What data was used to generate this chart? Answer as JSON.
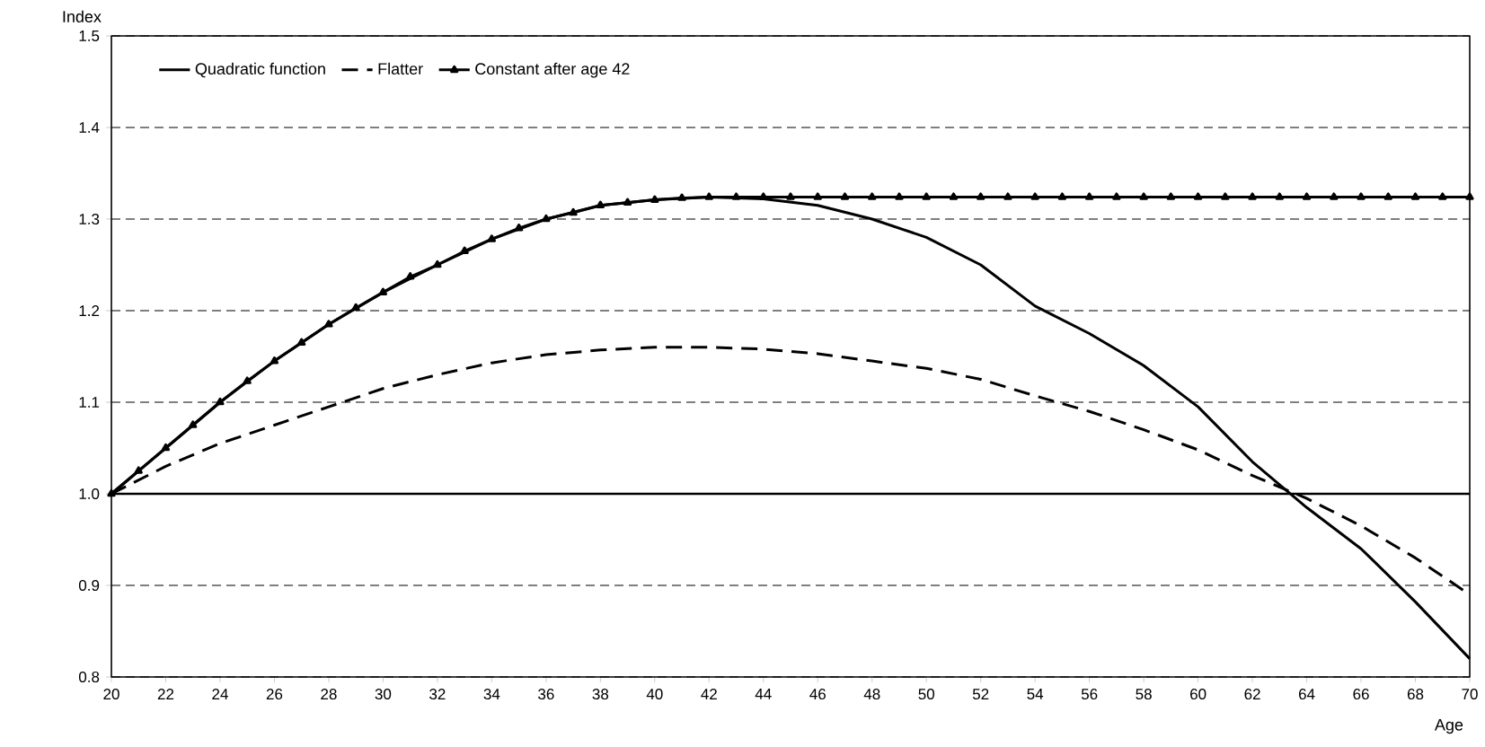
{
  "chart_data": {
    "type": "line",
    "xlabel": "Age",
    "ylabel": "Index",
    "xlim": [
      20,
      70
    ],
    "xticks": [
      20,
      22,
      24,
      26,
      28,
      30,
      32,
      34,
      36,
      38,
      40,
      42,
      44,
      46,
      48,
      50,
      52,
      54,
      56,
      58,
      60,
      62,
      64,
      66,
      68,
      70
    ],
    "ylim": [
      0.8,
      1.5
    ],
    "yticks": [
      0.8,
      0.9,
      {
        "value": 1,
        "label": "1.0"
      },
      1.1,
      1.2,
      1.3,
      1.4,
      1.5
    ],
    "grid": "y",
    "legend": "top left",
    "ref_lines": [
      {
        "axis": "y",
        "value": 1,
        "line_style": "solid",
        "color": "#000000"
      }
    ],
    "series": [
      {
        "name": "Quadratic function",
        "color": "#000000",
        "line_style": "solid",
        "marker": "none",
        "x": [
          20,
          22,
          24,
          26,
          28,
          30,
          32,
          34,
          36,
          38,
          40,
          42,
          44,
          46,
          48,
          50,
          52,
          54,
          56,
          58,
          60,
          62,
          64,
          66,
          68,
          70
        ],
        "values": [
          1.0,
          1.05,
          1.1,
          1.145,
          1.185,
          1.22,
          1.25,
          1.278,
          1.3,
          1.315,
          1.321,
          1.324,
          1.322,
          1.315,
          1.3,
          1.28,
          1.25,
          1.205,
          1.175,
          1.14,
          1.095,
          1.035,
          0.985,
          0.94,
          0.882,
          0.82
        ]
      },
      {
        "name": "Flatter",
        "color": "#000000",
        "line_style": "dashed",
        "marker": "none",
        "x": [
          20,
          22,
          24,
          26,
          28,
          30,
          32,
          34,
          36,
          38,
          40,
          42,
          44,
          46,
          48,
          50,
          52,
          54,
          56,
          58,
          60,
          62,
          64,
          66,
          68,
          70
        ],
        "values": [
          1.0,
          1.03,
          1.055,
          1.075,
          1.095,
          1.115,
          1.13,
          1.143,
          1.152,
          1.157,
          1.16,
          1.16,
          1.158,
          1.153,
          1.145,
          1.137,
          1.125,
          1.107,
          1.09,
          1.07,
          1.048,
          1.02,
          0.995,
          0.965,
          0.93,
          0.89
        ]
      },
      {
        "name": "Constant after age 42",
        "color": "#000000",
        "line_style": "solid",
        "marker": "triangle",
        "x": [
          20,
          21,
          22,
          23,
          24,
          25,
          26,
          27,
          28,
          29,
          30,
          31,
          32,
          33,
          34,
          35,
          36,
          37,
          38,
          39,
          40,
          41,
          42,
          43,
          44,
          45,
          46,
          47,
          48,
          49,
          50,
          51,
          52,
          53,
          54,
          55,
          56,
          57,
          58,
          59,
          60,
          61,
          62,
          63,
          64,
          65,
          66,
          67,
          68,
          69,
          70
        ],
        "values": [
          1.0,
          1.025,
          1.05,
          1.075,
          1.1,
          1.123,
          1.145,
          1.165,
          1.185,
          1.203,
          1.22,
          1.237,
          1.25,
          1.265,
          1.278,
          1.29,
          1.3,
          1.307,
          1.315,
          1.318,
          1.321,
          1.323,
          1.324,
          1.324,
          1.324,
          1.324,
          1.324,
          1.324,
          1.324,
          1.324,
          1.324,
          1.324,
          1.324,
          1.324,
          1.324,
          1.324,
          1.324,
          1.324,
          1.324,
          1.324,
          1.324,
          1.324,
          1.324,
          1.324,
          1.324,
          1.324,
          1.324,
          1.324,
          1.324,
          1.324,
          1.324
        ]
      }
    ]
  }
}
